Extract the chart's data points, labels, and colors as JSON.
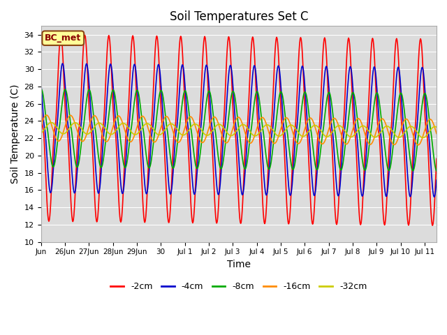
{
  "title": "Soil Temperatures Set C",
  "xlabel": "Time",
  "ylabel": "Soil Temperature (C)",
  "ylim": [
    10,
    35
  ],
  "yticks": [
    10,
    12,
    14,
    16,
    18,
    20,
    22,
    24,
    26,
    28,
    30,
    32,
    34
  ],
  "plot_bg_color": "#dcdcdc",
  "legend_labels": [
    "-2cm",
    "-4cm",
    "-8cm",
    "-16cm",
    "-32cm"
  ],
  "legend_colors": [
    "#ff0000",
    "#0000cc",
    "#00aa00",
    "#ff8c00",
    "#cccc00"
  ],
  "annotation_text": "BC_met",
  "annotation_bg": "#ffff99",
  "annotation_border": "#8B4513",
  "annotation_text_color": "#8B0000",
  "line_width": 1.2,
  "n_days": 16.5,
  "xtick_labels": [
    "Jun",
    "26Jun",
    "27Jun",
    "28Jun",
    "29Jun",
    "30",
    "Jul 1",
    "Jul 2",
    "Jul 3",
    "Jul 4",
    "Jul 5",
    "Jul 6",
    "Jul 7",
    "Jul 8",
    "Jul 9",
    "Jul 10",
    "Jul 11"
  ],
  "xtick_positions": [
    0,
    1,
    2,
    3,
    4,
    5,
    6,
    7,
    8,
    9,
    10,
    11,
    12,
    13,
    14,
    15,
    16
  ]
}
